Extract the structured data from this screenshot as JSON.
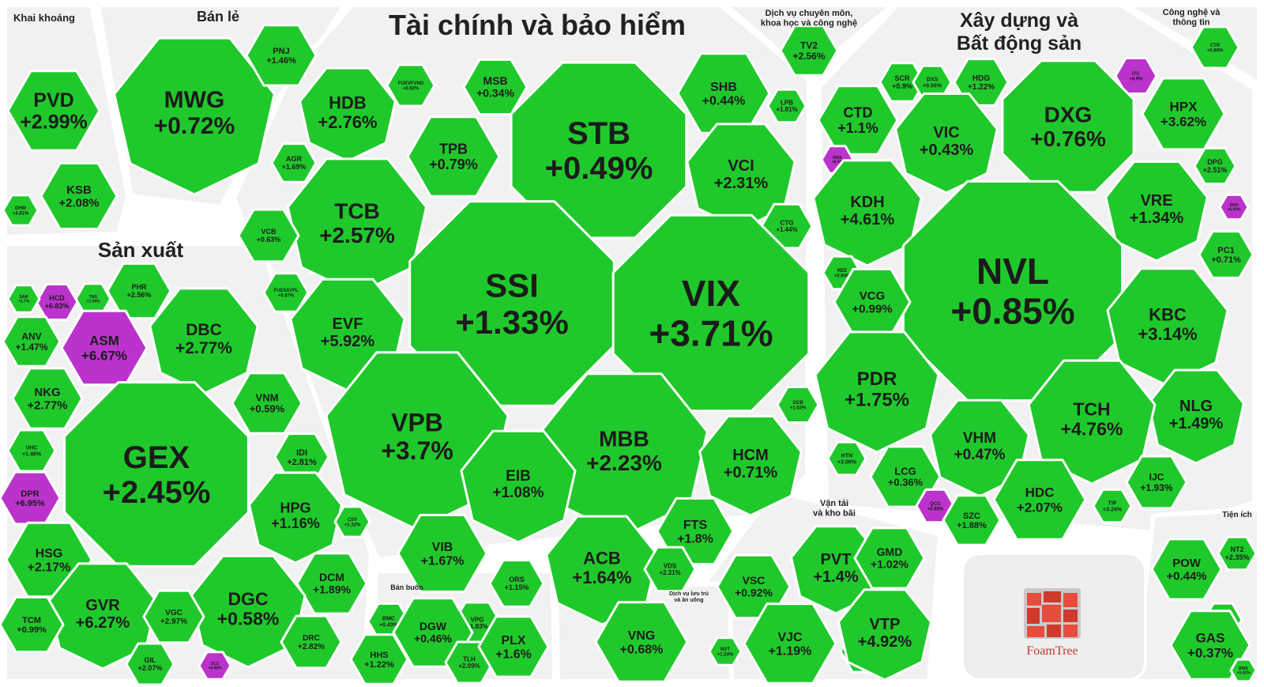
{
  "app": {
    "sectors": [
      {
        "id": "khai-khoang",
        "label": "Khai khoáng"
      },
      {
        "id": "ban-le",
        "label": "Bán lẻ"
      },
      {
        "id": "tai-chinh",
        "label": "Tài chính và bảo hiểm"
      },
      {
        "id": "dich-vu-chuyen-mon",
        "label": "Dịch vụ chuyên môn, khoa học và công nghệ"
      },
      {
        "id": "xay-dung",
        "label": "Xây dựng và Bất động sản"
      },
      {
        "id": "cong-nghe",
        "label": "Công nghệ và thông tin"
      },
      {
        "id": "san-xuat",
        "label": "Sản xuất"
      },
      {
        "id": "van-tai",
        "label": "Vận tải và kho bãi"
      },
      {
        "id": "ban-buon",
        "label": "Bán buôn"
      },
      {
        "id": "dich-vu-luu-tru",
        "label": "Dịch vụ lưu trú và ăn uống"
      },
      {
        "id": "tien-ich",
        "label": "Tiện ích"
      }
    ],
    "tiles": [
      {
        "t": "PVD",
        "c": "+2.99%"
      },
      {
        "t": "DHM",
        "c": "+4.81%"
      },
      {
        "t": "KSB",
        "c": "+2.08%"
      },
      {
        "t": "MWG",
        "c": "+0.72%"
      },
      {
        "t": "PNJ",
        "c": "+1.46%"
      },
      {
        "t": "HDB",
        "c": "+2.76%"
      },
      {
        "t": "FUEVFVND",
        "c": "+0.92%"
      },
      {
        "t": "MSB",
        "c": "+0.34%"
      },
      {
        "t": "SHB",
        "c": "+0.44%"
      },
      {
        "t": "TPB",
        "c": "+0.79%"
      },
      {
        "t": "AGR",
        "c": "+1.69%"
      },
      {
        "t": "LPB",
        "c": "+1.81%"
      },
      {
        "t": "STB",
        "c": "+0.49%"
      },
      {
        "t": "VCI",
        "c": "+2.31%"
      },
      {
        "t": "TCB",
        "c": "+2.57%"
      },
      {
        "t": "VCB",
        "c": "+0.63%"
      },
      {
        "t": "CTG",
        "c": "+1.44%"
      },
      {
        "t": "FUESSVFL",
        "c": "+0.87%"
      },
      {
        "t": "SSI",
        "c": "+1.33%"
      },
      {
        "t": "VIX",
        "c": "+3.71%"
      },
      {
        "t": "EVF",
        "c": "+5.92%"
      },
      {
        "t": "OCB",
        "c": "+1.02%"
      },
      {
        "t": "VPB",
        "c": "+3.7%"
      },
      {
        "t": "MBB",
        "c": "+2.23%"
      },
      {
        "t": "HCM",
        "c": "+0.71%"
      },
      {
        "t": "EIB",
        "c": "+1.08%"
      },
      {
        "t": "FTS",
        "c": "+1.8%"
      },
      {
        "t": "VIB",
        "c": "+1.67%"
      },
      {
        "t": "ORS",
        "c": "+1.15%"
      },
      {
        "t": "ACB",
        "c": "+1.64%"
      },
      {
        "t": "VDS",
        "c": "+2.31%"
      },
      {
        "t": "TV2",
        "c": "+2.56%"
      },
      {
        "t": "SCR",
        "c": "+0.9%"
      },
      {
        "t": "DXS",
        "c": "+0.56%"
      },
      {
        "t": "HDG",
        "c": "+1.22%"
      },
      {
        "t": "ITC",
        "c": "+6.9%"
      },
      {
        "t": "CTD",
        "c": "+1.1%"
      },
      {
        "t": "VIC",
        "c": "+0.43%"
      },
      {
        "t": "DXG",
        "c": "+0.76%"
      },
      {
        "t": "HPX",
        "c": "+3.62%"
      },
      {
        "t": "DPG",
        "c": "+2.51%"
      },
      {
        "t": "BMA",
        "c": "+6.9%"
      },
      {
        "t": "KDH",
        "c": "+4.61%"
      },
      {
        "t": "VRE",
        "c": "+1.34%"
      },
      {
        "t": "DRH",
        "c": "+6.99%"
      },
      {
        "t": "PC1",
        "c": "+0.71%"
      },
      {
        "t": "REE",
        "c": "+0.94%"
      },
      {
        "t": "NVL",
        "c": "+0.85%"
      },
      {
        "t": "VCG",
        "c": "+0.99%"
      },
      {
        "t": "KBC",
        "c": "+3.14%"
      },
      {
        "t": "PDR",
        "c": "+1.75%"
      },
      {
        "t": "NLG",
        "c": "+1.49%"
      },
      {
        "t": "TCH",
        "c": "+4.76%"
      },
      {
        "t": "VHM",
        "c": "+0.47%"
      },
      {
        "t": "HTN",
        "c": "+3.06%"
      },
      {
        "t": "LCG",
        "c": "+0.36%"
      },
      {
        "t": "HDC",
        "c": "+2.07%"
      },
      {
        "t": "IJC",
        "c": "+1.93%"
      },
      {
        "t": "QCG",
        "c": "+6.88%"
      },
      {
        "t": "TIP",
        "c": "+3.24%"
      },
      {
        "t": "SZC",
        "c": "+1.88%"
      },
      {
        "t": "CTR",
        "c": "+0.89%"
      },
      {
        "t": "HCD",
        "c": "+6.83%"
      },
      {
        "t": "SAM",
        "c": "+1.7%"
      },
      {
        "t": "TNG",
        "c": "+1.04%"
      },
      {
        "t": "PHR",
        "c": "+2.56%"
      },
      {
        "t": "ANV",
        "c": "+1.47%"
      },
      {
        "t": "ASM",
        "c": "+6.67%"
      },
      {
        "t": "DBC",
        "c": "+2.77%"
      },
      {
        "t": "NKG",
        "c": "+2.77%"
      },
      {
        "t": "VNM",
        "c": "+0.59%"
      },
      {
        "t": "VHC",
        "c": "+1.46%"
      },
      {
        "t": "GEX",
        "c": "+2.45%"
      },
      {
        "t": "IDI",
        "c": "+2.81%"
      },
      {
        "t": "DPR",
        "c": "+6.95%"
      },
      {
        "t": "HPG",
        "c": "+1.16%"
      },
      {
        "t": "CSV",
        "c": "+1.32%"
      },
      {
        "t": "HSG",
        "c": "+2.17%"
      },
      {
        "t": "DCM",
        "c": "+1.89%"
      },
      {
        "t": "GVR",
        "c": "+6.27%"
      },
      {
        "t": "DGC",
        "c": "+0.58%"
      },
      {
        "t": "TCM",
        "c": "+0.99%"
      },
      {
        "t": "VGC",
        "c": "+2.97%"
      },
      {
        "t": "GIL",
        "c": "+2.07%"
      },
      {
        "t": "DRC",
        "c": "+2.82%"
      },
      {
        "t": "SCS",
        "c": "+6.98%"
      },
      {
        "t": "BMC",
        "c": "+0.43%"
      },
      {
        "t": "VPG",
        "c": "+1.83%"
      },
      {
        "t": "DGW",
        "c": "+0.46%"
      },
      {
        "t": "HHS",
        "c": "+1.22%"
      },
      {
        "t": "TLH",
        "c": "+2.09%"
      },
      {
        "t": "PLX",
        "c": "+1.6%"
      },
      {
        "t": "VNG",
        "c": "+0.68%"
      },
      {
        "t": "NVT",
        "c": "+1.24%"
      },
      {
        "t": "VSC",
        "c": "+0.92%"
      },
      {
        "t": "PVT",
        "c": "+1.4%"
      },
      {
        "t": "GMD",
        "c": "+1.02%"
      },
      {
        "t": "VJC",
        "c": "+1.19%"
      },
      {
        "t": "HAH",
        "c": "+0.71%"
      },
      {
        "t": "VTP",
        "c": "+4.92%"
      },
      {
        "t": "NT2",
        "c": "+2.35%"
      },
      {
        "t": "POW",
        "c": "+0.44%"
      },
      {
        "t": "SIP",
        "c": "+1.68%"
      },
      {
        "t": "GAS",
        "c": "+0.37%"
      },
      {
        "t": "BWE",
        "c": "+0.42%"
      }
    ],
    "brand": {
      "label": "FoamTree"
    },
    "colors": {
      "gain": "#20c92b",
      "ceiling": "#bb33cc",
      "background": "#ffffff",
      "sector": "#f1f1f1"
    }
  }
}
